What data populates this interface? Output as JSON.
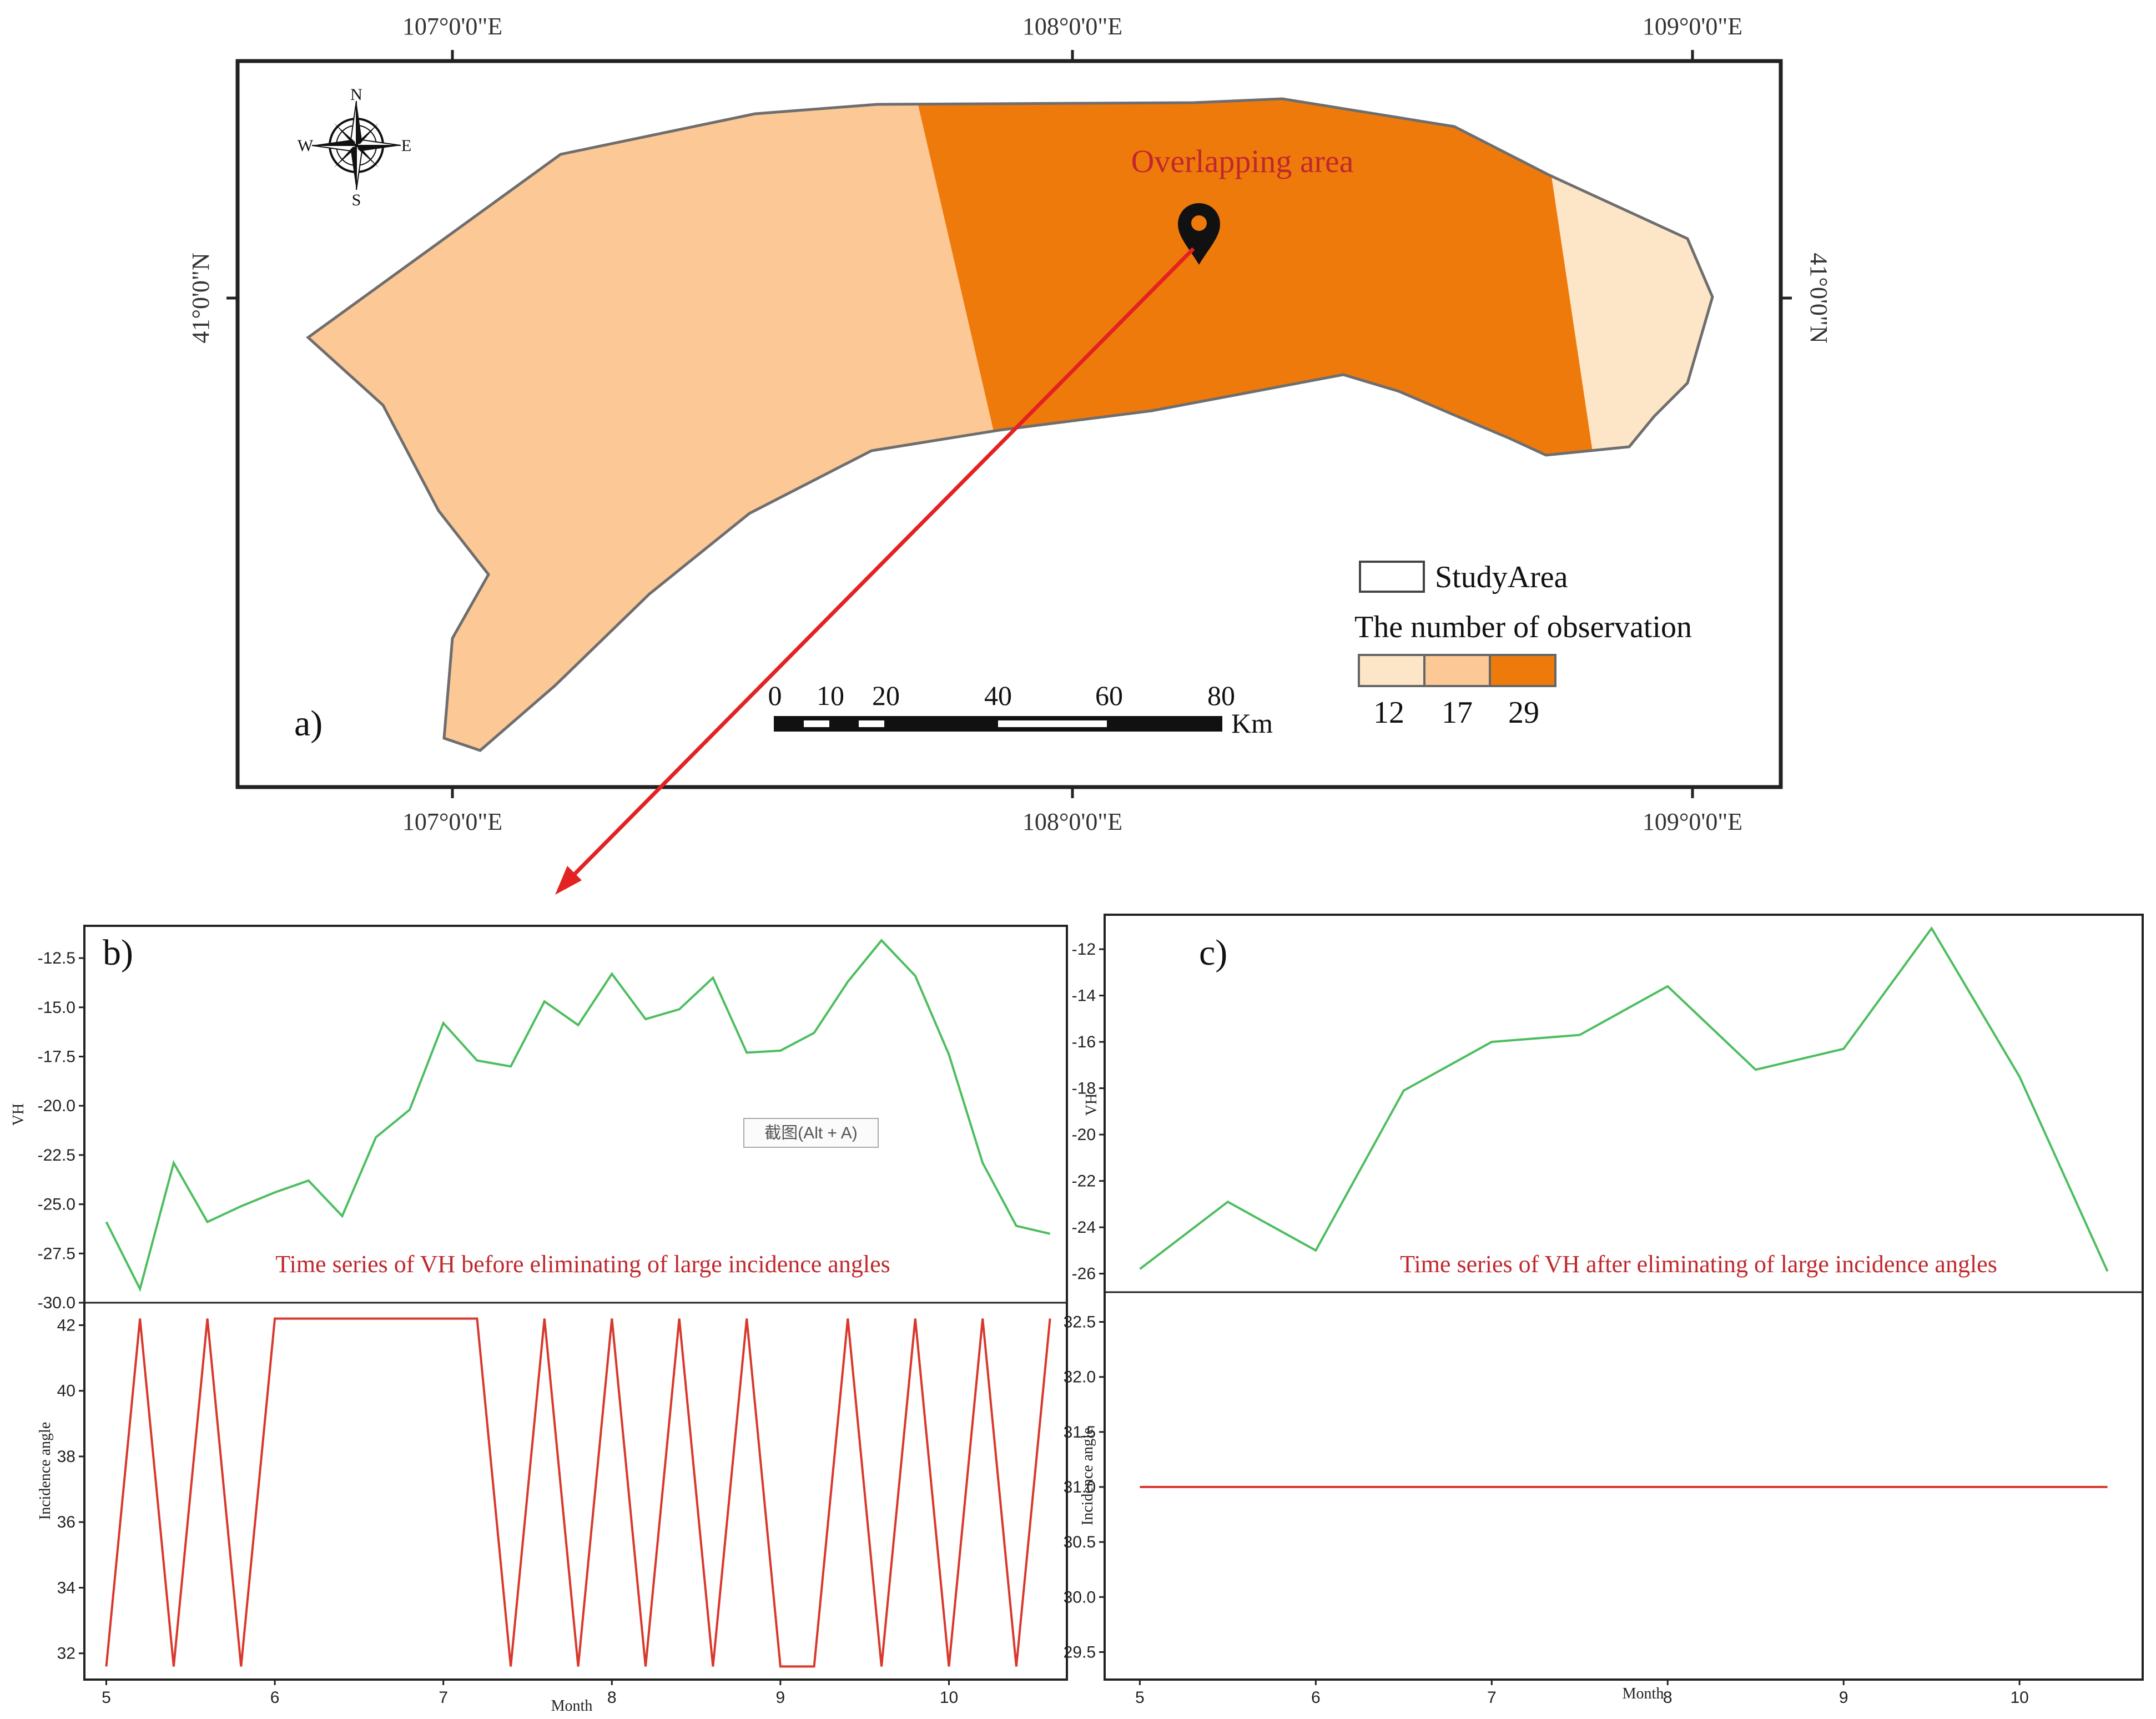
{
  "map": {
    "label": "a)",
    "annotation": "Overlapping area",
    "lon_ticks": [
      "107°0'0\"E",
      "108°0'0\"E",
      "109°0'0\"E"
    ],
    "lat_tick": "41°0'0\"N",
    "compass": {
      "n": "N",
      "s": "S",
      "e": "E",
      "w": "W"
    },
    "legend": {
      "study_area": "StudyArea",
      "title": "The number of observation",
      "classes": [
        {
          "value": "12",
          "color": "#fde6c7"
        },
        {
          "value": "17",
          "color": "#fcc896"
        },
        {
          "value": "29",
          "color": "#ef7a0c"
        }
      ]
    },
    "scale_bar": {
      "ticks": [
        "0",
        "10",
        "20",
        "40",
        "60",
        "80"
      ],
      "unit": "Km"
    }
  },
  "tooltip": "截图(Alt + A)",
  "chart_data": [
    {
      "type": "line",
      "panel": "b)",
      "annotation": "Time series of VH before eliminating of large incidence angles",
      "ylabel": "VH",
      "ylim": [
        -30,
        -11.2
      ],
      "yticks": [
        "-12.5",
        "-15.0",
        "-17.5",
        "-20.0",
        "-22.5",
        "-25.0",
        "-27.5",
        "-30.0"
      ],
      "x": [
        5.0,
        5.2,
        5.4,
        5.6,
        5.8,
        6.0,
        6.2,
        6.4,
        6.6,
        6.8,
        7.0,
        7.2,
        7.4,
        7.6,
        7.8,
        8.0,
        8.2,
        8.4,
        8.6,
        8.8,
        9.0,
        9.2,
        9.4,
        9.6,
        9.8,
        10.0,
        10.2,
        10.4,
        10.6
      ],
      "values": [
        -25.9,
        -29.3,
        -22.9,
        -25.9,
        -25.1,
        -24.4,
        -23.8,
        -25.6,
        -21.6,
        -20.2,
        -15.8,
        -17.7,
        -18.0,
        -14.7,
        -15.9,
        -13.3,
        -15.6,
        -15.1,
        -13.5,
        -17.3,
        -17.2,
        -16.3,
        -13.7,
        -11.6,
        -13.4,
        -17.4,
        -22.9,
        -26.1,
        -26.5
      ],
      "color": "#4cbe5f"
    },
    {
      "type": "line",
      "annotation": "",
      "xlabel": "Month",
      "ylabel": "Incidence angle",
      "ylim": [
        31.2,
        42.6
      ],
      "yticks": [
        "42",
        "40",
        "38",
        "36",
        "34",
        "32"
      ],
      "xticks": [
        "5",
        "6",
        "7",
        "8",
        "9",
        "10"
      ],
      "xlim": [
        4.87,
        10.7
      ],
      "x": [
        5.0,
        5.2,
        5.4,
        5.6,
        5.8,
        6.0,
        6.2,
        6.4,
        6.6,
        6.8,
        7.0,
        7.2,
        7.4,
        7.6,
        7.8,
        8.0,
        8.2,
        8.4,
        8.6,
        8.8,
        9.0,
        9.2,
        9.4,
        9.6,
        9.8,
        10.0,
        10.2,
        10.4,
        10.6
      ],
      "values": [
        31.6,
        42.2,
        31.6,
        42.2,
        31.6,
        42.2,
        42.2,
        42.2,
        42.2,
        42.2,
        42.2,
        42.2,
        31.6,
        42.2,
        31.6,
        42.2,
        31.6,
        42.2,
        31.6,
        42.2,
        31.6,
        31.6,
        42.2,
        31.6,
        42.2,
        31.6,
        42.2,
        31.6,
        42.2
      ],
      "color": "#d8392c"
    },
    {
      "type": "line",
      "panel": "c)",
      "annotation": "Time series of VH after eliminating of large incidence angles",
      "ylabel": "VH",
      "ylim": [
        -26.8,
        -10.8
      ],
      "yticks": [
        "-12",
        "-14",
        "-16",
        "-18",
        "-20",
        "-22",
        "-24",
        "-26"
      ],
      "x": [
        5.0,
        5.5,
        6.0,
        6.5,
        7.0,
        7.5,
        8.0,
        8.5,
        9.0,
        9.5,
        10.0,
        10.5
      ],
      "values": [
        -25.8,
        -22.9,
        -25.0,
        -18.1,
        -16.0,
        -15.7,
        -13.6,
        -17.2,
        -16.3,
        -11.1,
        -17.5,
        -25.9
      ],
      "color": "#4cbe5f"
    },
    {
      "type": "line",
      "annotation": "",
      "xlabel": "Month",
      "ylabel": "Incidence angle",
      "ylim": [
        29.25,
        32.75
      ],
      "yticks": [
        "32.5",
        "32.0",
        "31.5",
        "31.0",
        "30.5",
        "30.0",
        "29.5"
      ],
      "xticks": [
        "5",
        "6",
        "7",
        "8",
        "9",
        "10"
      ],
      "xlim": [
        4.8,
        10.7
      ],
      "x": [
        5.0,
        10.5
      ],
      "values": [
        31.0,
        31.0
      ],
      "color": "#d8392c"
    }
  ]
}
